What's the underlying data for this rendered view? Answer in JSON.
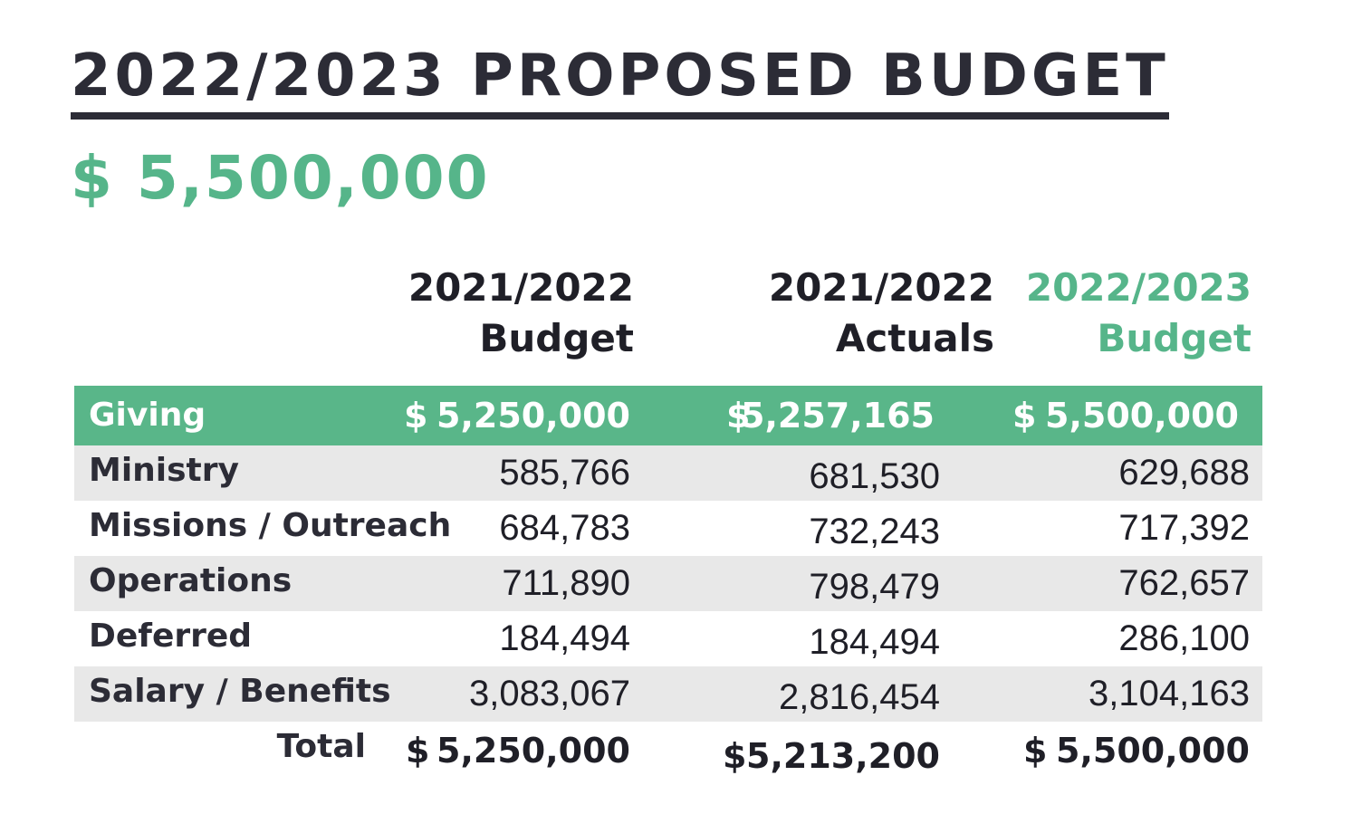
{
  "title": "2022/2023 PROPOSED BUDGET",
  "total_amount": "$ 5,500,000",
  "columns": [
    {
      "line1": "2021/2022",
      "line2": "Budget"
    },
    {
      "line1": "2021/2022",
      "line2": "Actuals"
    },
    {
      "line1": "2022/2023",
      "line2": "Budget"
    }
  ],
  "giving": {
    "label": "Giving",
    "currency": "$",
    "values": [
      "5,250,000",
      "5,257,165",
      "5,500,000"
    ]
  },
  "rows": [
    {
      "label": "Ministry",
      "values": [
        "585,766",
        "681,530",
        "629,688"
      ]
    },
    {
      "label": "Missions / Outreach",
      "values": [
        "684,783",
        "732,243",
        "717,392"
      ]
    },
    {
      "label": "Operations",
      "values": [
        "711,890",
        "798,479",
        "762,657"
      ]
    },
    {
      "label": "Deferred",
      "values": [
        "184,494",
        "184,494",
        "286,100"
      ]
    },
    {
      "label": "Salary / Benefits",
      "values": [
        "3,083,067",
        "2,816,454",
        "3,104,163"
      ]
    }
  ],
  "total": {
    "label": "Total",
    "currency": "$",
    "values": [
      "5,250,000",
      "5,213,200",
      "5,500,000"
    ]
  },
  "colors": {
    "accent": "#56b58a",
    "dark": "#2c2c36",
    "shade": "#e8e8e8"
  }
}
